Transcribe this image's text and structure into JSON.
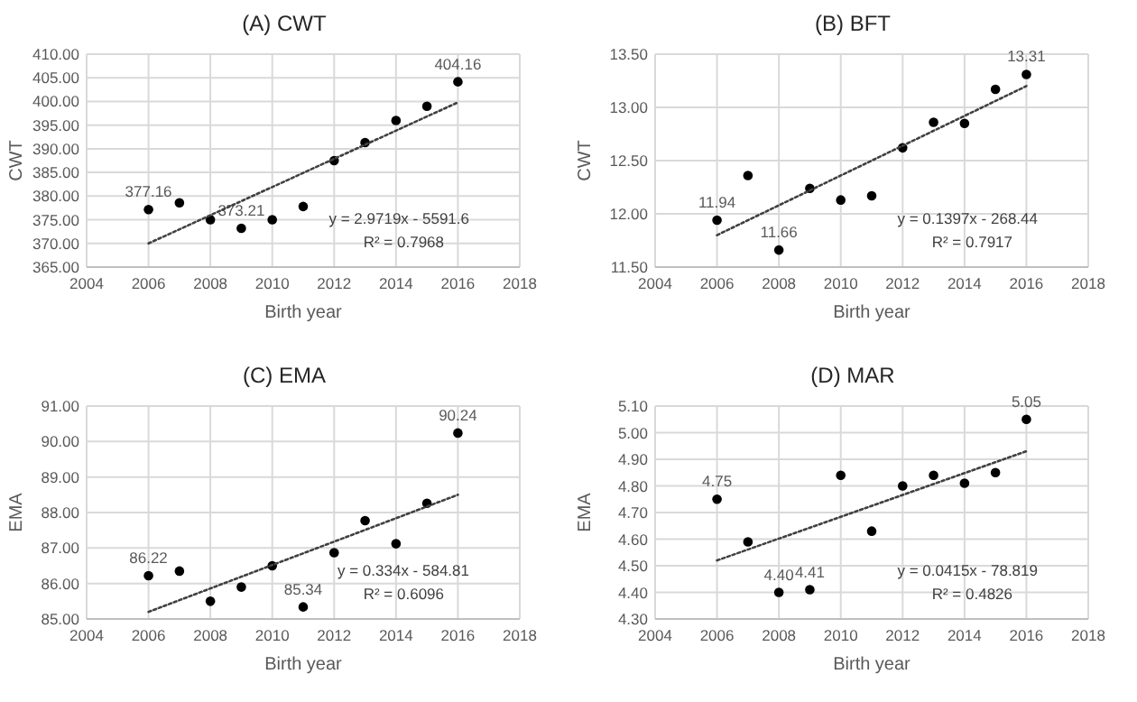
{
  "chart_data": [
    {
      "type": "scatter",
      "title": "(A) CWT",
      "xlabel": "Birth year",
      "ylabel": "CWT",
      "xlim": [
        2004,
        2018
      ],
      "xticks": [
        2004,
        2006,
        2008,
        2010,
        2012,
        2014,
        2016,
        2018
      ],
      "ylim": [
        365,
        410
      ],
      "yticks": [
        {
          "value": 365,
          "label": "365.00"
        },
        {
          "value": 370,
          "label": "370.00"
        },
        {
          "value": 375,
          "label": "375.00"
        },
        {
          "value": 380,
          "label": "380.00"
        },
        {
          "value": 385,
          "label": "385.00"
        },
        {
          "value": 390,
          "label": "390.00"
        },
        {
          "value": 395,
          "label": "395.00"
        },
        {
          "value": 400,
          "label": "400.00"
        },
        {
          "value": 405,
          "label": "405.00"
        },
        {
          "value": 410,
          "label": "410.00"
        }
      ],
      "grid": true,
      "annotations": [
        "y = 2.9719x - 5591.6",
        "R² = 0.7968"
      ],
      "series": [
        {
          "marker": "circle",
          "color": "#000000",
          "x": [
            2006,
            2007,
            2008,
            2009,
            2010,
            2011,
            2012,
            2013,
            2014,
            2015,
            2016
          ],
          "values": [
            377.16,
            378.6,
            375.0,
            373.21,
            375.0,
            377.8,
            387.5,
            391.3,
            396.0,
            399.0,
            404.16
          ],
          "value_labels": [
            "377.16",
            null,
            null,
            "373.21",
            null,
            null,
            null,
            null,
            null,
            null,
            "404.16"
          ]
        },
        {
          "type": "line",
          "color": "#404040",
          "line_style": "dotted",
          "x": [
            2006,
            2016
          ],
          "values": [
            370,
            399.8
          ]
        }
      ]
    },
    {
      "type": "scatter",
      "title": "(B) BFT",
      "xlabel": "Birth year",
      "ylabel": "CWT",
      "xlim": [
        2004,
        2018
      ],
      "xticks": [
        2004,
        2006,
        2008,
        2010,
        2012,
        2014,
        2016,
        2018
      ],
      "ylim": [
        11.5,
        13.5
      ],
      "yticks": [
        {
          "value": 11.5,
          "label": "11.50"
        },
        {
          "value": 12,
          "label": "12.00"
        },
        {
          "value": 12.5,
          "label": "12.50"
        },
        {
          "value": 13,
          "label": "13.00"
        },
        {
          "value": 13.5,
          "label": "13.50"
        }
      ],
      "grid": true,
      "annotations": [
        "y = 0.1397x - 268.44",
        "R² = 0.7917"
      ],
      "series": [
        {
          "marker": "circle",
          "color": "#000000",
          "x": [
            2006,
            2007,
            2008,
            2009,
            2010,
            2011,
            2012,
            2013,
            2014,
            2015,
            2016
          ],
          "values": [
            11.94,
            12.36,
            11.66,
            12.24,
            12.13,
            12.17,
            12.62,
            12.86,
            12.85,
            13.17,
            13.31
          ],
          "value_labels": [
            "11.94",
            null,
            "11.66",
            null,
            null,
            null,
            null,
            null,
            null,
            null,
            "13.31"
          ]
        },
        {
          "type": "line",
          "color": "#404040",
          "line_style": "dotted",
          "x": [
            2006,
            2016
          ],
          "values": [
            11.8,
            13.2
          ]
        }
      ]
    },
    {
      "type": "scatter",
      "title": "(C) EMA",
      "xlabel": "Birth year",
      "ylabel": "EMA",
      "xlim": [
        2004,
        2018
      ],
      "xticks": [
        2004,
        2006,
        2008,
        2010,
        2012,
        2014,
        2016,
        2018
      ],
      "ylim": [
        85,
        91
      ],
      "yticks": [
        {
          "value": 85,
          "label": "85.00"
        },
        {
          "value": 86,
          "label": "86.00"
        },
        {
          "value": 87,
          "label": "87.00"
        },
        {
          "value": 88,
          "label": "88.00"
        },
        {
          "value": 89,
          "label": "89.00"
        },
        {
          "value": 90,
          "label": "90.00"
        },
        {
          "value": 91,
          "label": "91.00"
        }
      ],
      "grid": true,
      "annotations": [
        "y = 0.334x - 584.81",
        "R² = 0.6096"
      ],
      "series": [
        {
          "marker": "circle",
          "color": "#000000",
          "x": [
            2006,
            2007,
            2008,
            2009,
            2010,
            2011,
            2012,
            2013,
            2014,
            2015,
            2016
          ],
          "values": [
            86.22,
            86.35,
            85.5,
            85.9,
            86.5,
            85.34,
            86.87,
            87.77,
            87.12,
            88.26,
            90.24
          ],
          "value_labels": [
            "86.22",
            null,
            null,
            null,
            null,
            "85.34",
            null,
            null,
            null,
            null,
            "90.24"
          ]
        },
        {
          "type": "line",
          "color": "#404040",
          "line_style": "dotted",
          "x": [
            2006,
            2016
          ],
          "values": [
            85.2,
            88.5
          ]
        }
      ]
    },
    {
      "type": "scatter",
      "title": "(D) MAR",
      "xlabel": "Birth year",
      "ylabel": "EMA",
      "xlim": [
        2004,
        2018
      ],
      "xticks": [
        2004,
        2006,
        2008,
        2010,
        2012,
        2014,
        2016,
        2018
      ],
      "ylim": [
        4.3,
        5.1
      ],
      "yticks": [
        {
          "value": 4.3,
          "label": "4.30"
        },
        {
          "value": 4.4,
          "label": "4.40"
        },
        {
          "value": 4.5,
          "label": "4.50"
        },
        {
          "value": 4.6,
          "label": "4.60"
        },
        {
          "value": 4.7,
          "label": "4.70"
        },
        {
          "value": 4.8,
          "label": "4.80"
        },
        {
          "value": 4.9,
          "label": "4.90"
        },
        {
          "value": 5.0,
          "label": "5.00"
        },
        {
          "value": 5.1,
          "label": "5.10"
        }
      ],
      "grid": true,
      "annotations": [
        "y = 0.0415x - 78.819",
        "R² = 0.4826"
      ],
      "series": [
        {
          "marker": "circle",
          "color": "#000000",
          "x": [
            2006,
            2007,
            2008,
            2009,
            2010,
            2011,
            2012,
            2013,
            2014,
            2015,
            2016
          ],
          "values": [
            4.75,
            4.59,
            4.4,
            4.41,
            4.84,
            4.63,
            4.8,
            4.84,
            4.81,
            4.85,
            5.05
          ],
          "value_labels": [
            "4.75",
            null,
            "4.40",
            "4.41",
            null,
            null,
            null,
            null,
            null,
            null,
            "5.05"
          ]
        },
        {
          "type": "line",
          "color": "#404040",
          "line_style": "dotted",
          "x": [
            2006,
            2016
          ],
          "values": [
            4.52,
            4.93
          ]
        }
      ]
    }
  ]
}
